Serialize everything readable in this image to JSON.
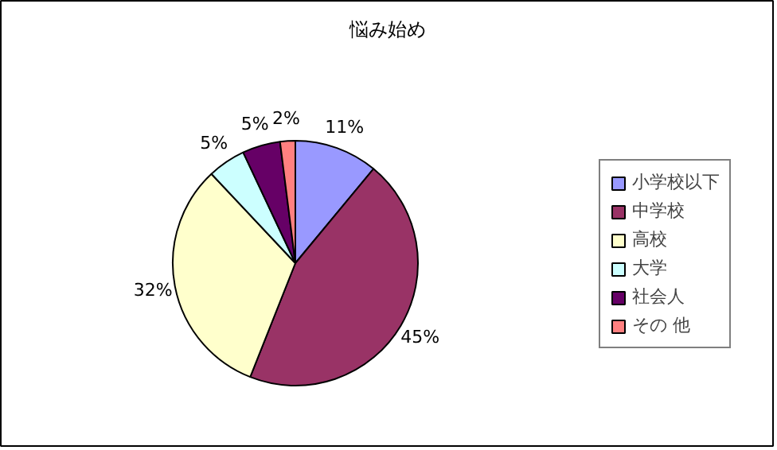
{
  "chart_data": {
    "type": "pie",
    "title": "悩み始め",
    "categories": [
      "小学校以下",
      "中学校",
      "高校",
      "大学",
      "社会人",
      "その 他"
    ],
    "values": [
      11,
      45,
      32,
      5,
      5,
      2
    ],
    "colors": [
      "#9999ff",
      "#993366",
      "#ffffcc",
      "#ccffff",
      "#660066",
      "#ff8080"
    ],
    "value_labels": [
      "11%",
      "45%",
      "32%",
      "5%",
      "5%",
      "2%"
    ],
    "legend": "right"
  }
}
